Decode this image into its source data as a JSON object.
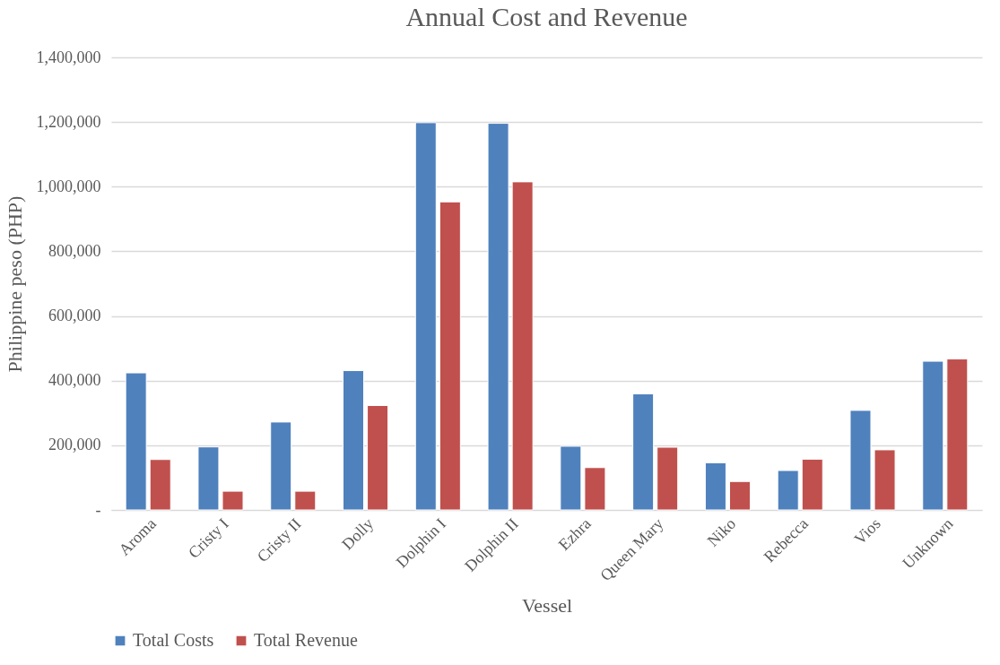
{
  "chart_data": {
    "type": "bar",
    "title": "Annual Cost and Revenue",
    "xlabel": "Vessel",
    "ylabel": "Philippine peso (PHP)",
    "categories": [
      "Aroma",
      "Cristy I",
      "Cristy II",
      "Dolly",
      "Dolphin I",
      "Dolphin II",
      "Ezhra",
      "Queen Mary",
      "Niko",
      "Rebecca",
      "Vios",
      "Unknown"
    ],
    "series": [
      {
        "name": "Total Costs",
        "color": "#4f81bd",
        "values": [
          424000,
          195000,
          272000,
          431000,
          1198000,
          1196000,
          197000,
          359000,
          146000,
          122000,
          308000,
          460000
        ]
      },
      {
        "name": "Total Revenue",
        "color": "#c0504d",
        "values": [
          156000,
          58000,
          58000,
          323000,
          953000,
          1015000,
          131000,
          194000,
          88000,
          157000,
          186000,
          467000
        ]
      }
    ],
    "ylim": [
      0,
      1400000
    ],
    "yticks": [
      {
        "value": 0,
        "label": "-"
      },
      {
        "value": 200000,
        "label": "200,000"
      },
      {
        "value": 400000,
        "label": "400,000"
      },
      {
        "value": 600000,
        "label": "600,000"
      },
      {
        "value": 800000,
        "label": "800,000"
      },
      {
        "value": 1000000,
        "label": "1,000,000"
      },
      {
        "value": 1200000,
        "label": "1,200,000"
      },
      {
        "value": 1400000,
        "label": "1,400,000"
      }
    ],
    "grid": "y",
    "legend": "bottom"
  }
}
